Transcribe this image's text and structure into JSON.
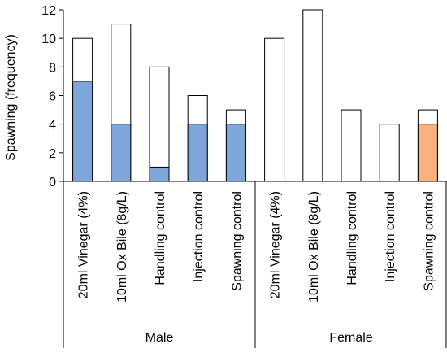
{
  "chart_data": {
    "type": "bar",
    "stacked": true,
    "title": "",
    "xlabel": "",
    "ylabel": "Spawning (frequency)",
    "ylim": [
      0,
      12
    ],
    "yticks": [
      0,
      2,
      4,
      6,
      8,
      10,
      12
    ],
    "grid": false,
    "legend": "none",
    "groups": [
      {
        "label": "Male",
        "categories": [
          "20ml Vinegar (4%)",
          "10ml Ox Bile (8g/L)",
          "Handling control",
          "Injection control",
          "Spawning control"
        ]
      },
      {
        "label": "Female",
        "categories": [
          "20ml Vinegar (4%)",
          "10ml Ox Bile (8g/L)",
          "Handling control",
          "Injection control",
          "Spawning control"
        ]
      }
    ],
    "bars": [
      {
        "group": "Male",
        "category": "20ml Vinegar (4%)",
        "total": 10,
        "filled": 7
      },
      {
        "group": "Male",
        "category": "10ml Ox Bile (8g/L)",
        "total": 11,
        "filled": 4
      },
      {
        "group": "Male",
        "category": "Handling control",
        "total": 8,
        "filled": 1
      },
      {
        "group": "Male",
        "category": "Injection control",
        "total": 6,
        "filled": 4
      },
      {
        "group": "Male",
        "category": "Spawning control",
        "total": 5,
        "filled": 4
      },
      {
        "group": "Female",
        "category": "20ml Vinegar (4%)",
        "total": 10,
        "filled": 0
      },
      {
        "group": "Female",
        "category": "10ml Ox Bile (8g/L)",
        "total": 12,
        "filled": 0
      },
      {
        "group": "Female",
        "category": "Handling control",
        "total": 5,
        "filled": 0
      },
      {
        "group": "Female",
        "category": "Injection control",
        "total": 4,
        "filled": 0
      },
      {
        "group": "Female",
        "category": "Spawning control",
        "total": 5,
        "filled": 4
      }
    ],
    "colors": {
      "male_fill": "#7ea6dc",
      "female_fill": "#fbb07e",
      "bar_background": "#ffffff",
      "outline": "#000000",
      "axis": "#000000"
    }
  }
}
